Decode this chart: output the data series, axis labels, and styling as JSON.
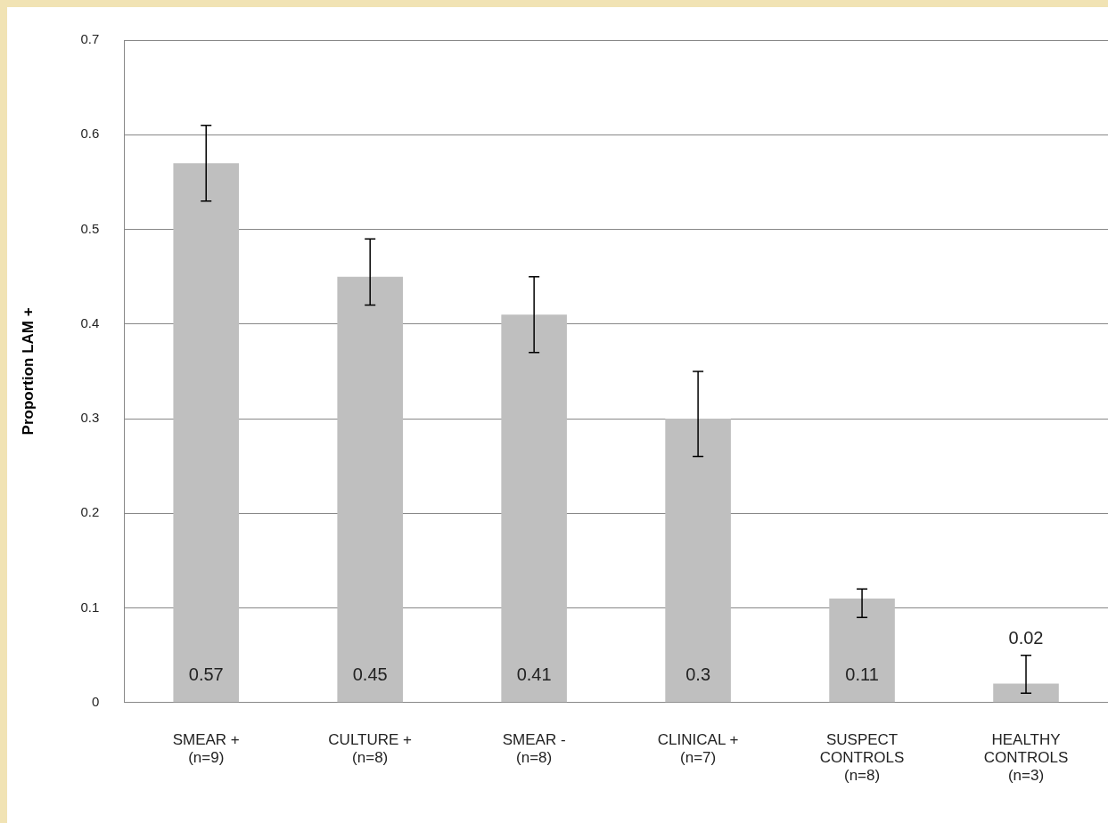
{
  "chart_data": {
    "type": "bar",
    "ylabel": "Proportion LAM +",
    "categories": [
      "SMEAR + (n=9)",
      "CULTURE + (n=8)",
      "SMEAR - (n=8)",
      "CLINICAL + (n=7)",
      "SUSPECT CONTROLS (n=8)",
      "HEALTHY CONTROLS (n=3)"
    ],
    "values": [
      0.57,
      0.45,
      0.41,
      0.3,
      0.11,
      0.02
    ],
    "errors": [
      [
        0.53,
        0.61
      ],
      [
        0.42,
        0.49
      ],
      [
        0.37,
        0.45
      ],
      [
        0.26,
        0.35
      ],
      [
        0.09,
        0.12
      ],
      [
        0.01,
        0.05
      ]
    ],
    "data_labels": true,
    "color": "#bfbfbf",
    "ylim": [
      0,
      0.7
    ],
    "yticks": [
      0,
      0.1,
      0.2,
      0.3,
      0.4,
      0.5,
      0.6,
      0.7
    ],
    "grid": "y",
    "legend": false
  }
}
